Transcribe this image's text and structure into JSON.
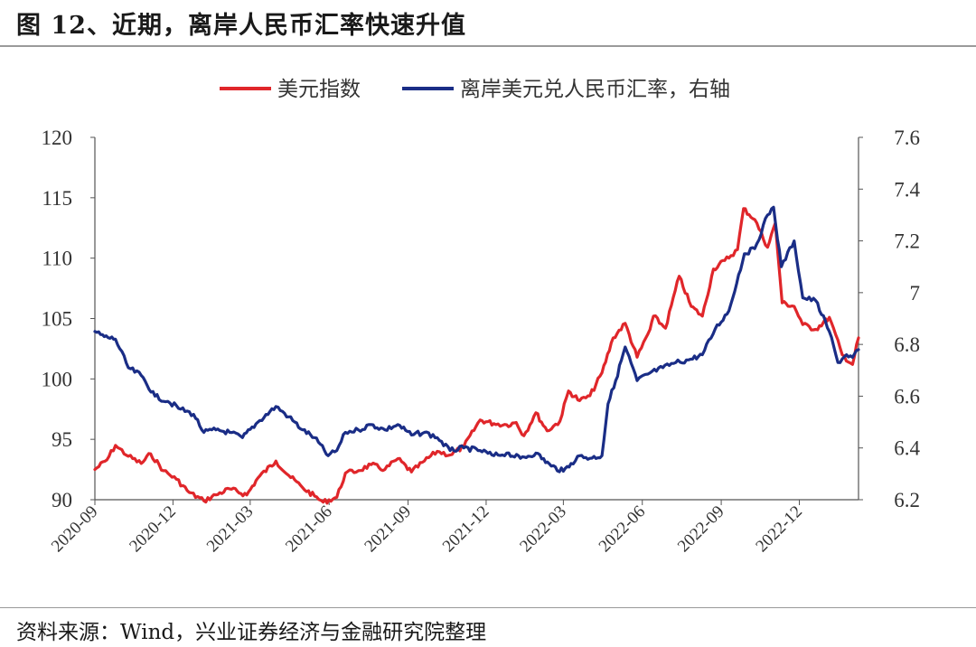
{
  "header": {
    "title": "图 12、近期，离岸人民币汇率快速升值"
  },
  "footer": {
    "source": "资料来源：Wind，兴业证券经济与金融研究院整理"
  },
  "colors": {
    "usd_index": "#e0262a",
    "usdcnh": "#1a2d86",
    "axis": "#555555"
  },
  "chart_data": {
    "type": "line",
    "title": "图 12、近期，离岸人民币汇率快速升值",
    "legend_position": "top-center",
    "grid": false,
    "x_tick_labels": [
      "2020-09",
      "2020-12",
      "2021-03",
      "2021-06",
      "2021-09",
      "2021-12",
      "2022-03",
      "2022-06",
      "2022-09",
      "2022-12"
    ],
    "xlim": [
      "2020-09-01",
      "2023-02-08"
    ],
    "y_left": {
      "lim": [
        90,
        120
      ],
      "ticks": [
        "90",
        "95",
        "100",
        "105",
        "110",
        "115",
        "120"
      ]
    },
    "y_right": {
      "lim": [
        6.2,
        7.6
      ],
      "ticks": [
        "6.2",
        "6.4",
        "6.6",
        "6.8",
        "7",
        "7.2",
        "7.4",
        "7.6"
      ]
    },
    "series": [
      {
        "name": "美元指数",
        "axis": "left",
        "color": "#e0262a",
        "points": [
          [
            "2020-09-01",
            92.5
          ],
          [
            "2020-09-15",
            93.3
          ],
          [
            "2020-09-25",
            94.5
          ],
          [
            "2020-10-10",
            93.6
          ],
          [
            "2020-10-25",
            93.0
          ],
          [
            "2020-11-05",
            93.8
          ],
          [
            "2020-11-20",
            92.4
          ],
          [
            "2020-12-05",
            91.7
          ],
          [
            "2020-12-20",
            90.6
          ],
          [
            "2021-01-06",
            89.9
          ],
          [
            "2021-01-20",
            90.4
          ],
          [
            "2021-02-05",
            90.9
          ],
          [
            "2021-02-25",
            90.4
          ],
          [
            "2021-03-10",
            91.8
          ],
          [
            "2021-03-31",
            93.2
          ],
          [
            "2021-04-15",
            92.0
          ],
          [
            "2021-05-01",
            91.0
          ],
          [
            "2021-05-15",
            90.3
          ],
          [
            "2021-05-25",
            89.8
          ],
          [
            "2021-06-10",
            90.2
          ],
          [
            "2021-06-20",
            92.2
          ],
          [
            "2021-07-05",
            92.4
          ],
          [
            "2021-07-20",
            92.9
          ],
          [
            "2021-08-05",
            92.5
          ],
          [
            "2021-08-20",
            93.4
          ],
          [
            "2021-09-05",
            92.3
          ],
          [
            "2021-09-20",
            93.2
          ],
          [
            "2021-10-05",
            94.0
          ],
          [
            "2021-10-20",
            93.7
          ],
          [
            "2021-11-05",
            94.4
          ],
          [
            "2021-11-24",
            96.6
          ],
          [
            "2021-12-10",
            96.3
          ],
          [
            "2021-12-25",
            96.2
          ],
          [
            "2022-01-05",
            96.4
          ],
          [
            "2022-01-14",
            95.3
          ],
          [
            "2022-01-28",
            97.2
          ],
          [
            "2022-02-10",
            95.7
          ],
          [
            "2022-02-25",
            96.5
          ],
          [
            "2022-03-07",
            99.0
          ],
          [
            "2022-03-20",
            98.2
          ],
          [
            "2022-04-01",
            98.6
          ],
          [
            "2022-04-15",
            100.5
          ],
          [
            "2022-04-28",
            103.4
          ],
          [
            "2022-05-12",
            104.6
          ],
          [
            "2022-05-26",
            101.8
          ],
          [
            "2022-06-10",
            104.1
          ],
          [
            "2022-06-14",
            105.2
          ],
          [
            "2022-06-28",
            104.2
          ],
          [
            "2022-07-14",
            108.5
          ],
          [
            "2022-07-28",
            106.0
          ],
          [
            "2022-08-10",
            105.2
          ],
          [
            "2022-08-23",
            109.1
          ],
          [
            "2022-09-05",
            109.8
          ],
          [
            "2022-09-20",
            110.7
          ],
          [
            "2022-09-27",
            114.1
          ],
          [
            "2022-10-10",
            113.2
          ],
          [
            "2022-10-25",
            110.9
          ],
          [
            "2022-11-03",
            112.9
          ],
          [
            "2022-11-11",
            106.3
          ],
          [
            "2022-11-25",
            106.0
          ],
          [
            "2022-12-05",
            104.5
          ],
          [
            "2022-12-20",
            104.1
          ],
          [
            "2023-01-05",
            105.1
          ],
          [
            "2023-01-20",
            102.0
          ],
          [
            "2023-02-01",
            101.2
          ],
          [
            "2023-02-08",
            103.4
          ]
        ]
      },
      {
        "name": "离岸美元兑人民币汇率，右轴",
        "axis": "right",
        "color": "#1a2d86",
        "points": [
          [
            "2020-09-01",
            6.85
          ],
          [
            "2020-09-12",
            6.83
          ],
          [
            "2020-09-25",
            6.82
          ],
          [
            "2020-10-10",
            6.71
          ],
          [
            "2020-10-25",
            6.68
          ],
          [
            "2020-11-10",
            6.6
          ],
          [
            "2020-11-25",
            6.58
          ],
          [
            "2020-12-10",
            6.55
          ],
          [
            "2020-12-25",
            6.53
          ],
          [
            "2021-01-06",
            6.46
          ],
          [
            "2021-01-20",
            6.47
          ],
          [
            "2021-02-05",
            6.46
          ],
          [
            "2021-02-20",
            6.44
          ],
          [
            "2021-03-10",
            6.5
          ],
          [
            "2021-03-31",
            6.56
          ],
          [
            "2021-04-15",
            6.52
          ],
          [
            "2021-05-01",
            6.47
          ],
          [
            "2021-05-15",
            6.44
          ],
          [
            "2021-05-31",
            6.37
          ],
          [
            "2021-06-10",
            6.39
          ],
          [
            "2021-06-20",
            6.46
          ],
          [
            "2021-07-05",
            6.47
          ],
          [
            "2021-07-20",
            6.49
          ],
          [
            "2021-08-05",
            6.47
          ],
          [
            "2021-08-20",
            6.49
          ],
          [
            "2021-09-05",
            6.45
          ],
          [
            "2021-09-20",
            6.46
          ],
          [
            "2021-10-05",
            6.44
          ],
          [
            "2021-10-20",
            6.39
          ],
          [
            "2021-11-05",
            6.4
          ],
          [
            "2021-11-24",
            6.39
          ],
          [
            "2021-12-10",
            6.37
          ],
          [
            "2021-12-25",
            6.38
          ],
          [
            "2022-01-10",
            6.36
          ],
          [
            "2022-01-28",
            6.38
          ],
          [
            "2022-02-15",
            6.33
          ],
          [
            "2022-03-01",
            6.31
          ],
          [
            "2022-03-10",
            6.34
          ],
          [
            "2022-03-20",
            6.37
          ],
          [
            "2022-04-01",
            6.36
          ],
          [
            "2022-04-15",
            6.37
          ],
          [
            "2022-04-22",
            6.57
          ],
          [
            "2022-05-01",
            6.66
          ],
          [
            "2022-05-12",
            6.79
          ],
          [
            "2022-05-26",
            6.66
          ],
          [
            "2022-06-10",
            6.69
          ],
          [
            "2022-06-25",
            6.71
          ],
          [
            "2022-07-10",
            6.73
          ],
          [
            "2022-07-25",
            6.74
          ],
          [
            "2022-08-10",
            6.76
          ],
          [
            "2022-08-25",
            6.86
          ],
          [
            "2022-09-10",
            6.93
          ],
          [
            "2022-09-28",
            7.15
          ],
          [
            "2022-10-10",
            7.17
          ],
          [
            "2022-10-25",
            7.3
          ],
          [
            "2022-11-01",
            7.33
          ],
          [
            "2022-11-10",
            7.1
          ],
          [
            "2022-11-25",
            7.2
          ],
          [
            "2022-12-05",
            6.98
          ],
          [
            "2022-12-20",
            6.97
          ],
          [
            "2023-01-05",
            6.85
          ],
          [
            "2023-01-15",
            6.73
          ],
          [
            "2023-01-25",
            6.76
          ],
          [
            "2023-02-01",
            6.75
          ],
          [
            "2023-02-08",
            6.78
          ]
        ]
      }
    ]
  }
}
